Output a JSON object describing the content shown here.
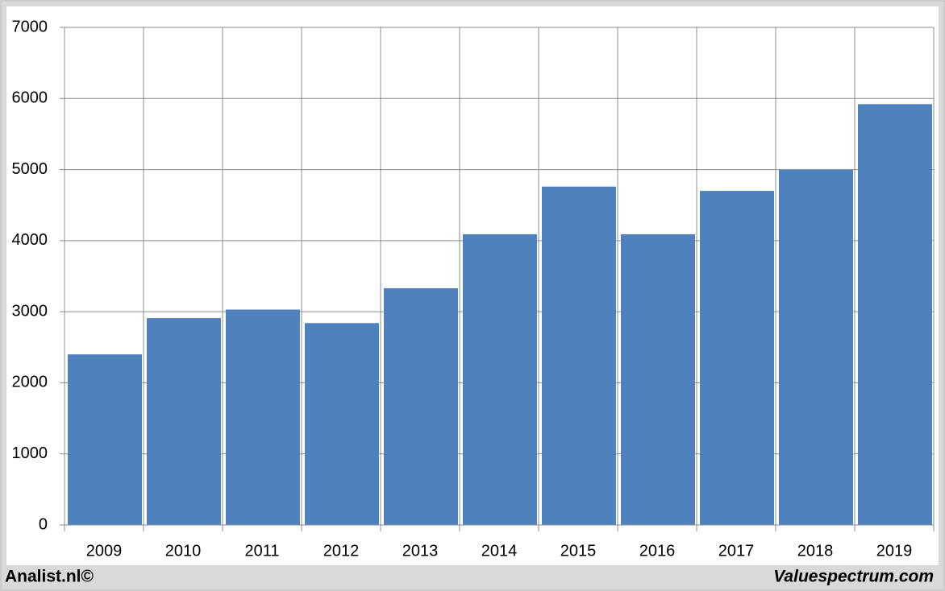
{
  "chart_data": {
    "type": "bar",
    "categories": [
      "2009",
      "2010",
      "2011",
      "2012",
      "2013",
      "2014",
      "2015",
      "2016",
      "2017",
      "2018",
      "2019"
    ],
    "values": [
      2400,
      2910,
      3030,
      2840,
      3330,
      4090,
      4760,
      4090,
      4700,
      5000,
      5920
    ],
    "color": "#4f81bd",
    "ylim": [
      0,
      7000
    ],
    "yticks": [
      0,
      1000,
      2000,
      3000,
      4000,
      5000,
      6000,
      7000
    ],
    "grid": true
  },
  "footer": {
    "left": "Analist.nl©",
    "right": "Valuespectrum.com"
  }
}
